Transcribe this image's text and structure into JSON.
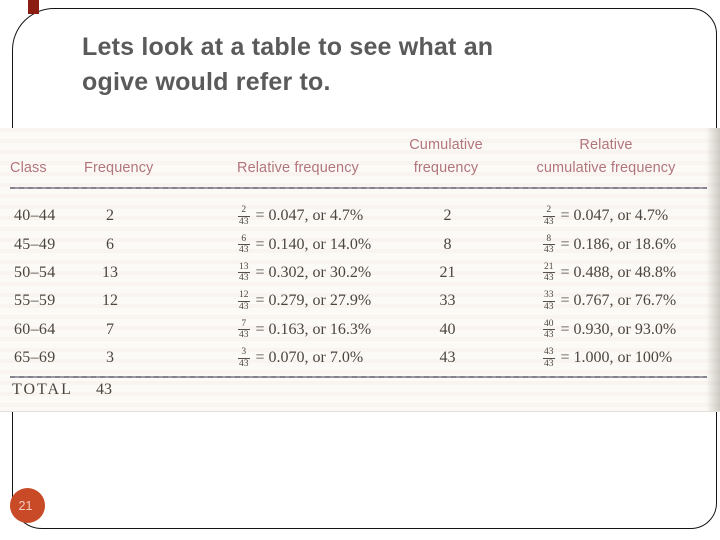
{
  "slide": {
    "title_lines": [
      "Lets look at a table to see what an",
      "ogive would refer to."
    ],
    "page_number": "21"
  },
  "table": {
    "headers": {
      "class": "Class",
      "frequency": "Frequency",
      "relative_frequency": "Relative frequency",
      "cumulative_line1": "Cumulative",
      "cumulative_line2": "frequency",
      "relative_cumulative_line1": "Relative",
      "relative_cumulative_line2": "cumulative frequency"
    },
    "rows": [
      {
        "class": "40–44",
        "frequency": "2",
        "rf_num": "2",
        "rf_den": "43",
        "rf_text": "= 0.047, or 4.7%",
        "cf": "2",
        "rcf_num": "2",
        "rcf_den": "43",
        "rcf_text": "= 0.047, or 4.7%"
      },
      {
        "class": "45–49",
        "frequency": "6",
        "rf_num": "6",
        "rf_den": "43",
        "rf_text": "= 0.140, or 14.0%",
        "cf": "8",
        "rcf_num": "8",
        "rcf_den": "43",
        "rcf_text": "= 0.186, or 18.6%"
      },
      {
        "class": "50–54",
        "frequency": "13",
        "rf_num": "13",
        "rf_den": "43",
        "rf_text": "= 0.302, or 30.2%",
        "cf": "21",
        "rcf_num": "21",
        "rcf_den": "43",
        "rcf_text": "= 0.488, or 48.8%"
      },
      {
        "class": "55–59",
        "frequency": "12",
        "rf_num": "12",
        "rf_den": "43",
        "rf_text": "= 0.279, or 27.9%",
        "cf": "33",
        "rcf_num": "33",
        "rcf_den": "43",
        "rcf_text": "= 0.767, or 76.7%"
      },
      {
        "class": "60–64",
        "frequency": "7",
        "rf_num": "7",
        "rf_den": "43",
        "rf_text": "= 0.163, or 16.3%",
        "cf": "40",
        "rcf_num": "40",
        "rcf_den": "43",
        "rcf_text": "= 0.930, or 93.0%"
      },
      {
        "class": "65–69",
        "frequency": "3",
        "rf_num": "3",
        "rf_den": "43",
        "rf_text": "= 0.070, or 7.0%",
        "cf": "43",
        "rcf_num": "43",
        "rcf_den": "43",
        "rcf_text": "= 1.000, or 100%"
      }
    ],
    "total_label": "TOTAL",
    "total_value": "43"
  },
  "colors": {
    "title_text": "#5a5a5a",
    "table_header_text": "#b2757b",
    "table_body_text": "#4b453f",
    "rule_line": "#8f8e96",
    "page_circle": "#c84a26",
    "ornament": "#8c1d12",
    "frame_border": "#141414"
  }
}
